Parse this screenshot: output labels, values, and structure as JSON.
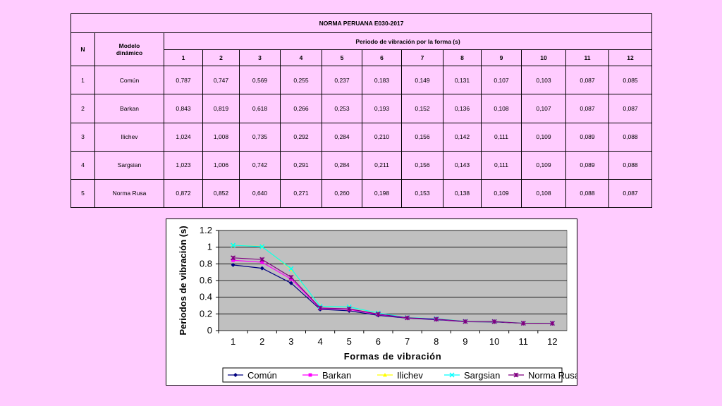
{
  "table": {
    "title": "NORMA PERUANA E030-2017",
    "col_n": "N",
    "col_model": "Modelo dinámico",
    "period_header": "Periodo de vibración por la forma (s)",
    "mode_numbers": [
      "1",
      "2",
      "3",
      "4",
      "5",
      "6",
      "7",
      "8",
      "9",
      "10",
      "11",
      "12"
    ],
    "rows": [
      {
        "n": "1",
        "model": "Común",
        "values": [
          "0,787",
          "0,747",
          "0,569",
          "0,255",
          "0,237",
          "0,183",
          "0,149",
          "0,131",
          "0,107",
          "0,103",
          "0,087",
          "0,085"
        ]
      },
      {
        "n": "2",
        "model": "Barkan",
        "values": [
          "0,843",
          "0,819",
          "0,618",
          "0,266",
          "0,253",
          "0,193",
          "0,152",
          "0,136",
          "0,108",
          "0,107",
          "0,087",
          "0,087"
        ]
      },
      {
        "n": "3",
        "model": "Ilichev",
        "values": [
          "1,024",
          "1,008",
          "0,735",
          "0,292",
          "0,284",
          "0,210",
          "0,156",
          "0,142",
          "0,111",
          "0,109",
          "0,089",
          "0,088"
        ]
      },
      {
        "n": "4",
        "model": "Sargsian",
        "values": [
          "1,023",
          "1,006",
          "0,742",
          "0,291",
          "0,284",
          "0,211",
          "0,156",
          "0,143",
          "0,111",
          "0,109",
          "0,089",
          "0,088"
        ]
      },
      {
        "n": "5",
        "model": "Norma Rusa",
        "values": [
          "0,872",
          "0,852",
          "0,640",
          "0,271",
          "0,260",
          "0,198",
          "0,153",
          "0,138",
          "0,109",
          "0,108",
          "0,088",
          "0,087"
        ]
      }
    ]
  },
  "chart_data": {
    "type": "line",
    "title": "",
    "xlabel": "Formas de vibración",
    "ylabel": "Periodos de vibración (s)",
    "x": [
      1,
      2,
      3,
      4,
      5,
      6,
      7,
      8,
      9,
      10,
      11,
      12
    ],
    "ylim": [
      0,
      1.2
    ],
    "yticks": [
      "0",
      "0.2",
      "0.4",
      "0.6",
      "0.8",
      "1",
      "1.2"
    ],
    "grid": true,
    "legend_position": "bottom",
    "plot_background": "#c0c0c0",
    "series": [
      {
        "name": "Común",
        "color": "#000080",
        "marker": "diamond",
        "values": [
          0.787,
          0.747,
          0.569,
          0.255,
          0.237,
          0.183,
          0.149,
          0.131,
          0.107,
          0.103,
          0.087,
          0.085
        ]
      },
      {
        "name": "Barkan",
        "color": "#ff00ff",
        "marker": "square",
        "values": [
          0.843,
          0.819,
          0.618,
          0.266,
          0.253,
          0.193,
          0.152,
          0.136,
          0.108,
          0.107,
          0.087,
          0.087
        ]
      },
      {
        "name": "Ilichev",
        "color": "#ffff00",
        "marker": "triangle",
        "values": [
          1.024,
          1.008,
          0.735,
          0.292,
          0.284,
          0.21,
          0.156,
          0.142,
          0.111,
          0.109,
          0.089,
          0.088
        ]
      },
      {
        "name": "Sargsian",
        "color": "#00ffff",
        "marker": "x",
        "values": [
          1.023,
          1.006,
          0.742,
          0.291,
          0.284,
          0.211,
          0.156,
          0.143,
          0.111,
          0.109,
          0.089,
          0.088
        ]
      },
      {
        "name": "Norma Rusa",
        "color": "#800080",
        "marker": "star",
        "values": [
          0.872,
          0.852,
          0.64,
          0.271,
          0.26,
          0.198,
          0.153,
          0.138,
          0.109,
          0.108,
          0.088,
          0.087
        ]
      }
    ]
  }
}
